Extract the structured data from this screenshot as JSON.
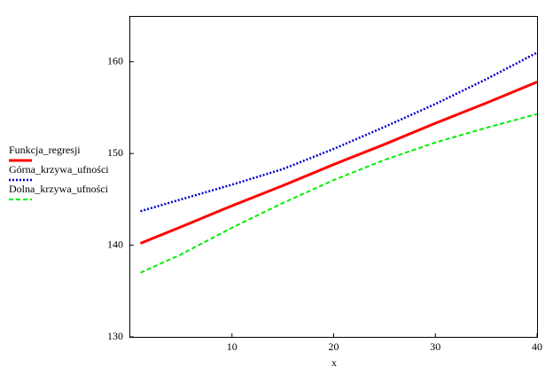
{
  "chart_data": {
    "type": "line",
    "x_label": "x",
    "x": [
      1,
      5,
      10,
      15,
      20,
      25,
      30,
      35,
      40
    ],
    "series": [
      {
        "name": "Funkcja_regresji",
        "color": "#ff0000",
        "dash": "solid",
        "values": [
          140.2,
          142.0,
          144.3,
          146.5,
          148.8,
          151.0,
          153.3,
          155.5,
          157.8
        ]
      },
      {
        "name": "Górna_krzywa_ufności",
        "color": "#0000cc",
        "dash": "dotted",
        "values": [
          143.7,
          145.0,
          146.6,
          148.3,
          150.5,
          152.9,
          155.4,
          158.1,
          161.0
        ]
      },
      {
        "name": "Dolna_krzywa_ufności",
        "color": "#00ee00",
        "dash": "dashed",
        "values": [
          137.0,
          139.0,
          141.9,
          144.6,
          147.1,
          149.3,
          151.2,
          152.8,
          154.3
        ]
      }
    ],
    "xlim": [
      0,
      40
    ],
    "xticks": [
      10,
      20,
      30,
      40
    ],
    "ylim": [
      130,
      165
    ],
    "yticks": [
      130,
      140,
      150,
      160
    ]
  }
}
